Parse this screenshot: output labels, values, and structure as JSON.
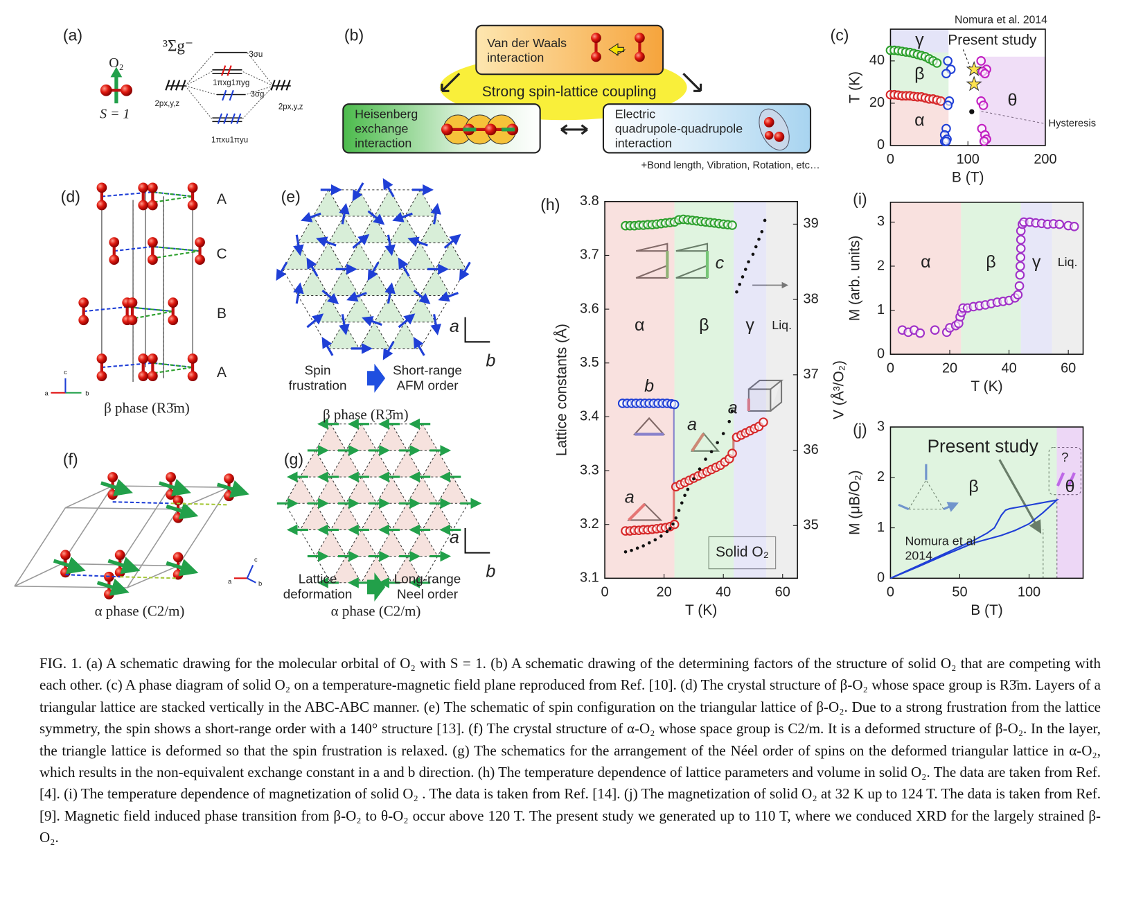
{
  "panels": {
    "a": {
      "label": "(a)",
      "molecule": "O₂",
      "spin": "S = 1",
      "term": "³Σg⁻",
      "levels": [
        "3σu",
        "1πxg1πyg",
        "3σg",
        "1πxu1πyu"
      ],
      "atomic_left": "2px,y,z",
      "atomic_right": "2px,y,z"
    },
    "b": {
      "label": "(b)",
      "center": "Strong spin-lattice coupling",
      "vdw": [
        "Van der Waals",
        "interaction"
      ],
      "heisenberg": [
        "Heisenberg",
        "exchange",
        "interaction"
      ],
      "electric": [
        "Electric",
        "quadrupole-quadrupole",
        "interaction"
      ],
      "note": "+Bond length, Vibration, Rotation, etc…"
    },
    "d": {
      "label": "(d)",
      "layers": [
        "A",
        "C",
        "B",
        "A"
      ],
      "axes": [
        "a",
        "b",
        "c"
      ],
      "caption": "β phase (R3̄m)"
    },
    "e": {
      "label": "(e)",
      "axes": [
        "a",
        "b"
      ],
      "left": [
        "Spin",
        "frustration"
      ],
      "right": [
        "Short-range",
        "AFM order"
      ],
      "caption": "β phase (R3̄m)"
    },
    "f": {
      "label": "(f)",
      "axes": [
        "a",
        "b",
        "c"
      ],
      "caption": "α phase (C2/m)"
    },
    "g": {
      "label": "(g)",
      "axes": [
        "a",
        "b"
      ],
      "left": [
        "Lattice",
        "deformation"
      ],
      "right": [
        "Long-range",
        "Neel order"
      ],
      "caption": "α phase (C2/m)"
    }
  },
  "chart_data": [
    {
      "type": "scatter",
      "panel_label": "(c)",
      "x_label": "B (T)",
      "y_label": "T (K)",
      "xlim": [
        0,
        200
      ],
      "ylim": [
        0,
        55
      ],
      "xticks": [
        0,
        100,
        200
      ],
      "yticks": [
        0,
        20,
        40
      ],
      "regions": [
        {
          "label": "γ",
          "x": [
            0,
            75
          ],
          "y": [
            44,
            55
          ],
          "color": "#c9c9f2"
        },
        {
          "label": "β",
          "x": [
            0,
            75
          ],
          "y": [
            23,
            44
          ],
          "color": "#c2eac2"
        },
        {
          "label": "α",
          "x": [
            0,
            75
          ],
          "y": [
            0,
            23
          ],
          "color": "#f4c4c0"
        },
        {
          "label": "θ",
          "x": [
            115,
            200
          ],
          "y": [
            0,
            42
          ],
          "color": "#e2bdf0"
        }
      ],
      "annotations": [
        "Nomura et al. 2014",
        "Present study",
        "Hysteresis"
      ],
      "series": [
        {
          "color": "#2ca02c",
          "marker": "open",
          "x": [
            0,
            5,
            10,
            15,
            20,
            25,
            30,
            35,
            40,
            45,
            50,
            55,
            60
          ],
          "values": [
            45,
            45,
            44.8,
            44.5,
            44.2,
            44,
            43.5,
            43,
            42.5,
            42,
            41,
            40,
            39
          ]
        },
        {
          "color": "#d62728",
          "marker": "open",
          "x": [
            0,
            5,
            10,
            15,
            20,
            25,
            30,
            35,
            40,
            45,
            50,
            55,
            60,
            65
          ],
          "values": [
            24,
            24,
            23.8,
            23.5,
            23.5,
            23.5,
            23.2,
            23,
            23,
            22.5,
            22,
            22,
            21.5,
            21
          ]
        },
        {
          "color": "#1f3fd6",
          "marker": "open",
          "x": [
            74,
            78,
            72,
            76,
            74,
            72,
            70,
            73,
            70,
            72
          ],
          "values": [
            40,
            36,
            34,
            21,
            19,
            8,
            5,
            3,
            2,
            2
          ]
        },
        {
          "color": "#c21fc2",
          "marker": "open",
          "x": [
            117,
            124,
            119,
            122,
            117,
            120,
            118,
            122,
            124,
            121
          ],
          "values": [
            40,
            36,
            35,
            34,
            21,
            19,
            8,
            5,
            3,
            2
          ]
        },
        {
          "color": "#ffe44d",
          "marker": "star",
          "x": [
            108,
            108
          ],
          "values": [
            36,
            29
          ]
        },
        {
          "color": "#111111",
          "marker": "dot",
          "x": [
            105
          ],
          "values": [
            16
          ]
        }
      ]
    },
    {
      "type": "scatter",
      "panel_label": "(h)",
      "x_label": "T (K)",
      "y_label": "Lattice constants (Å)",
      "y2_label": "V (Å³/O₂)",
      "xlim": [
        0,
        65
      ],
      "ylim": [
        3.1,
        3.8
      ],
      "y2lim": [
        34.3,
        39.3
      ],
      "xticks": [
        0,
        20,
        40,
        60
      ],
      "yticks": [
        3.1,
        3.2,
        3.3,
        3.4,
        3.5,
        3.6,
        3.7,
        3.8
      ],
      "y2ticks": [
        35,
        36,
        37,
        38,
        39
      ],
      "regions": [
        {
          "label": "α",
          "x": [
            0,
            23.5
          ],
          "color": "#f4c4c0"
        },
        {
          "label": "β",
          "x": [
            23.5,
            43.5
          ],
          "color": "#c2eac2"
        },
        {
          "label": "γ",
          "x": [
            43.5,
            54.5
          ],
          "color": "#cfcff2"
        },
        {
          "label": "Liq.",
          "x": [
            54.5,
            65
          ],
          "color": "#dedede"
        }
      ],
      "annotations": [
        "Solid O₂",
        "c",
        "b",
        "a",
        "a",
        "a"
      ],
      "series": [
        {
          "color": "#2ca02c",
          "marker": "open",
          "x": [
            7,
            8.5,
            10,
            11.5,
            13,
            14.5,
            16,
            17.5,
            19,
            20.5,
            22,
            23.5,
            25,
            26.5,
            28,
            29.5,
            31,
            32.5,
            34,
            35.5,
            37,
            38.5,
            40,
            41.5,
            43
          ],
          "values": [
            3.755,
            3.755,
            3.755,
            3.756,
            3.756,
            3.757,
            3.757,
            3.758,
            3.759,
            3.76,
            3.761,
            3.762,
            3.766,
            3.767,
            3.766,
            3.765,
            3.764,
            3.763,
            3.762,
            3.761,
            3.76,
            3.759,
            3.758,
            3.757,
            3.756
          ]
        },
        {
          "color": "#1f3fd6",
          "marker": "open",
          "x": [
            6,
            7.5,
            9,
            10.5,
            12,
            13.5,
            15,
            16.5,
            18,
            19.5,
            21,
            22.5,
            23.5
          ],
          "values": [
            3.425,
            3.425,
            3.425,
            3.425,
            3.425,
            3.425,
            3.425,
            3.425,
            3.425,
            3.425,
            3.425,
            3.424,
            3.423
          ]
        },
        {
          "color": "#d62728",
          "marker": "open",
          "x": [
            7,
            8.5,
            10,
            11.5,
            13,
            14.5,
            16,
            17.5,
            19,
            20.5,
            22,
            23.5,
            24,
            25.5,
            27,
            28.5,
            30,
            31.5,
            33,
            34.5,
            36,
            37.5,
            39,
            40.5,
            42,
            43,
            44.5,
            46,
            47.5,
            49,
            50.5,
            52,
            53.5
          ],
          "values": [
            3.188,
            3.188,
            3.189,
            3.189,
            3.19,
            3.19,
            3.191,
            3.192,
            3.193,
            3.194,
            3.196,
            3.2,
            3.27,
            3.274,
            3.278,
            3.282,
            3.286,
            3.29,
            3.294,
            3.298,
            3.302,
            3.306,
            3.31,
            3.316,
            3.322,
            3.332,
            3.362,
            3.366,
            3.37,
            3.374,
            3.378,
            3.382,
            3.39
          ]
        },
        {
          "color": "#111111",
          "marker": "dot",
          "axis": "y2",
          "x": [
            7,
            9,
            11,
            13,
            15,
            17,
            19,
            21,
            22,
            23,
            24,
            25,
            26,
            27,
            28,
            30,
            32,
            34,
            36,
            38,
            40,
            42,
            43,
            44.5,
            45.5,
            46.5,
            47.5,
            48.5,
            50,
            51,
            52,
            53,
            54
          ],
          "values": [
            34.65,
            34.67,
            34.7,
            34.73,
            34.77,
            34.81,
            34.86,
            34.92,
            34.96,
            35.02,
            35.1,
            35.2,
            35.3,
            35.4,
            35.48,
            35.62,
            35.75,
            35.88,
            35.98,
            36.1,
            36.22,
            36.38,
            36.52,
            38.1,
            38.2,
            38.3,
            38.4,
            38.5,
            38.6,
            38.7,
            38.8,
            38.9,
            39.05
          ]
        }
      ]
    },
    {
      "type": "scatter",
      "panel_label": "(i)",
      "x_label": "T (K)",
      "y_label": "M (arb. units)",
      "xlim": [
        0,
        65
      ],
      "ylim": [
        0,
        3.45
      ],
      "xticks": [
        0,
        20,
        40,
        60
      ],
      "yticks": [
        0,
        1,
        2,
        3
      ],
      "regions": [
        {
          "label": "α",
          "x": [
            0,
            23.8
          ],
          "color": "#f4c4c0"
        },
        {
          "label": "β",
          "x": [
            23.8,
            44
          ],
          "color": "#c2eac2"
        },
        {
          "label": "γ",
          "x": [
            44,
            54.5
          ],
          "color": "#cfcff2"
        },
        {
          "label": "Liq.",
          "x": [
            54.5,
            65
          ],
          "color": "#dedede"
        }
      ],
      "annotations": [],
      "series": [
        {
          "color": "#a030c8",
          "marker": "open",
          "x": [
            4,
            6,
            8,
            10,
            15,
            19,
            20,
            22,
            23,
            23.5,
            24,
            24.5,
            26,
            28,
            30,
            32,
            34,
            36,
            38,
            40,
            42,
            43,
            43.5,
            43.7,
            43.8,
            43.9,
            44,
            44,
            44,
            44.5,
            45,
            47,
            49,
            51,
            53,
            55,
            57,
            60,
            62
          ],
          "values": [
            0.55,
            0.5,
            0.55,
            0.48,
            0.55,
            0.5,
            0.6,
            0.65,
            0.7,
            0.85,
            0.95,
            1.05,
            1.05,
            1.08,
            1.1,
            1.12,
            1.15,
            1.18,
            1.2,
            1.22,
            1.28,
            1.35,
            1.55,
            1.8,
            2,
            2.2,
            2.4,
            2.6,
            2.8,
            2.95,
            3,
            3,
            2.98,
            2.97,
            2.95,
            2.96,
            2.95,
            2.92,
            2.9
          ]
        }
      ]
    },
    {
      "type": "line",
      "panel_label": "(j)",
      "x_label": "B (T)",
      "y_label": "M (μB/O₂)",
      "xlim": [
        0,
        139
      ],
      "ylim": [
        0,
        3
      ],
      "xticks": [
        0,
        50,
        100
      ],
      "yticks": [
        0,
        1,
        2,
        3
      ],
      "regions": [
        {
          "label": "β",
          "x": [
            0,
            120
          ],
          "color": "#c2eac2"
        },
        {
          "label": "θ",
          "x": [
            120,
            139
          ],
          "color": "#dcb0ee"
        }
      ],
      "annotations": [
        "Present study",
        [
          "Nomura et al",
          "2014"
        ],
        "?"
      ],
      "series": [
        {
          "color": "#1f3fd6",
          "marker": "line",
          "x": [
            0,
            20,
            40,
            60,
            70,
            75,
            80,
            83,
            86,
            90,
            100,
            110,
            120,
            110,
            100,
            90,
            80,
            60,
            40,
            20,
            0
          ],
          "values": [
            0,
            0.25,
            0.5,
            0.75,
            0.9,
            1,
            1.25,
            1.35,
            1.38,
            1.4,
            1.45,
            1.5,
            1.55,
            1.3,
            1.08,
            0.95,
            0.85,
            0.7,
            0.47,
            0.23,
            0
          ]
        }
      ]
    }
  ],
  "caption": "FIG. 1.   (a) A schematic drawing for the molecular orbital of O₂ with S = 1. (b) A schematic drawing of the determining factors of the structure of solid O₂ that are competing with each other. (c) A phase diagram of solid O₂ on a temperature-magnetic field plane reproduced from Ref. [10]. (d) The crystal structure of β-O₂ whose space group is R3̄m. Layers of a triangular lattice are stacked vertically in the ABC-ABC manner. (e) The schematic of spin configuration on the triangular lattice of β-O₂. Due to a strong frustration from the lattice symmetry, the spin shows a short-range order with a 140° structure [13]. (f) The crystal structure of α-O₂ whose space group is C2/m. It is a deformed structure of β-O₂. In the layer, the triangle lattice is deformed so that the spin frustration is relaxed. (g) The schematics for the arrangement of the Néel order of spins on the deformed triangular lattice in α-O₂, which results in the non-equivalent exchange constant in a and b direction. (h) The temperature dependence of lattice parameters and volume in solid O₂. The data are taken from Ref. [4]. (i) The temperature dependence of magnetization of solid O₂ . The data is taken from Ref. [14]. (j) The magnetization of solid O₂ at 32 K up to 124 T. The data is taken from Ref. [9]. Magnetic field induced phase transition from β-O₂ to θ-O₂ occur above 120 T. The present study we generated up to 110 T, where we conduced XRD for the largely strained β-O₂."
}
